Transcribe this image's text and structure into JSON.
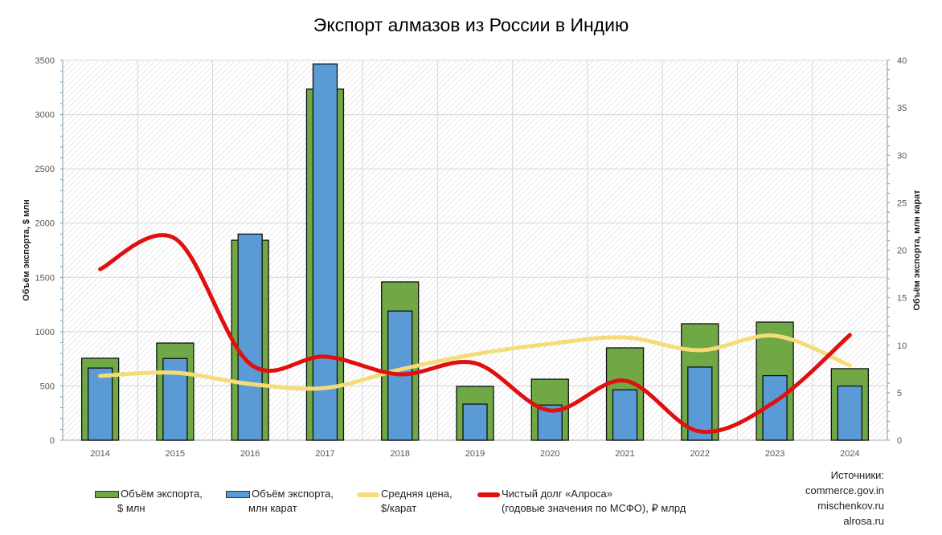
{
  "chart_data": {
    "type": "bar",
    "title": "Экспорт алмазов из России в Индию",
    "ylabel": "Объём экспорта, $ млн",
    "y2label": "Объём экспорта, млн карат",
    "ylim": [
      0,
      3500
    ],
    "y2lim": [
      0,
      40
    ],
    "yticks": [
      0,
      500,
      1000,
      1500,
      2000,
      2500,
      3000,
      3500
    ],
    "y2ticks": [
      0,
      5,
      10,
      15,
      20,
      25,
      30,
      35,
      40
    ],
    "categories": [
      "2014",
      "2015",
      "2016",
      "2017",
      "2018",
      "2019",
      "2020",
      "2021",
      "2022",
      "2023",
      "2024"
    ],
    "grid": true,
    "legend_position": "bottom",
    "series": [
      {
        "name": "Объём экспорта, $ млн",
        "type": "bar",
        "axis": "left",
        "color": "#70a845",
        "values": [
          755,
          895,
          1842,
          3234,
          1458,
          496,
          562,
          851,
          1073,
          1088,
          659
        ]
      },
      {
        "name": "Объём экспорта, млн карат",
        "type": "bar",
        "axis": "right",
        "color": "#5b9bd5",
        "values": [
          7.6,
          8.6,
          21.7,
          39.6,
          13.6,
          3.8,
          3.7,
          5.3,
          7.7,
          6.8,
          5.7
        ]
      },
      {
        "name": "Средняя цена, $/карат",
        "type": "line",
        "axis": "left",
        "color": "#f5dc78",
        "values": [
          592,
          622,
          518,
          481,
          651,
          792,
          888,
          947,
          829,
          962,
          688
        ]
      },
      {
        "name": "Чистый долг «Алроса» (годовые значения по МСФО), ₽ млрд",
        "type": "line",
        "axis": "left",
        "color": "#e01010",
        "values": [
          1576,
          1857,
          703,
          770,
          607,
          710,
          274,
          548,
          81,
          355,
          969
        ]
      }
    ]
  },
  "legend": {
    "green_1": "Объём экспорта,",
    "green_2": "$ млн",
    "blue_1": "Объём экспорта,",
    "blue_2": "млн карат",
    "yellow_1": "Средняя цена,",
    "yellow_2": "$/карат",
    "red_1": "Чистый долг «Алроса»",
    "red_2": "(годовые значения по МСФО), ₽ млрд"
  },
  "sources": {
    "label": "Источники:",
    "items": [
      "commerce.gov.in",
      "mischenkov.ru",
      "alrosa.ru"
    ]
  }
}
